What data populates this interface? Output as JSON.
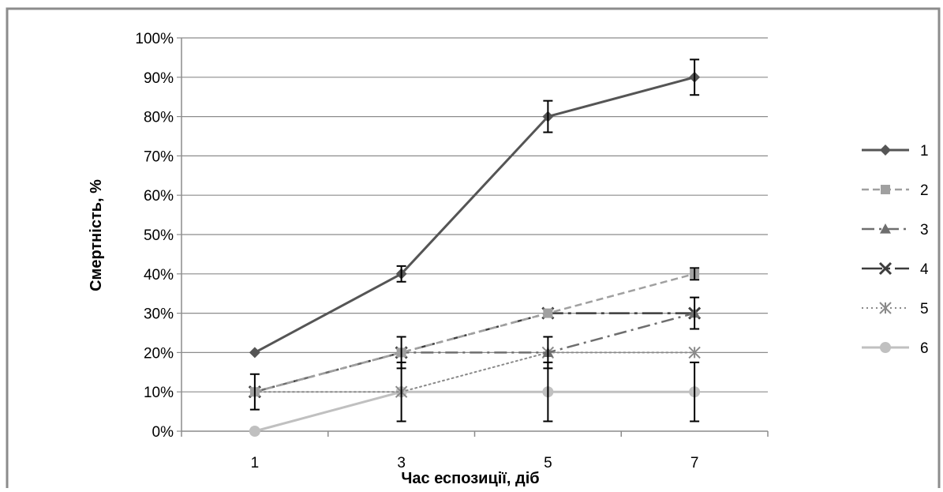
{
  "chart_data": {
    "type": "line",
    "title": "",
    "xlabel": "Час еспозиції, діб",
    "ylabel": "Смертність, %",
    "categories": [
      "1",
      "3",
      "5",
      "7"
    ],
    "ylim": [
      0,
      100
    ],
    "ytick_step": 10,
    "ytick_format": "percent",
    "grid": "horizontal",
    "legend_position": "right",
    "series": [
      {
        "name": "1",
        "values": [
          20,
          40,
          80,
          90
        ],
        "errors": [
          null,
          2,
          4,
          4.5
        ],
        "color": "#555555",
        "dash": "solid",
        "width": 3,
        "marker": "diamond"
      },
      {
        "name": "2",
        "values": [
          10,
          20,
          30,
          40
        ],
        "errors": [
          null,
          null,
          null,
          1.5
        ],
        "color": "#a0a0a0",
        "dash": "dash",
        "width": 2.5,
        "marker": "square"
      },
      {
        "name": "3",
        "values": [
          10,
          20,
          20,
          30
        ],
        "errors": [
          null,
          null,
          4,
          null
        ],
        "color": "#6e6e6e",
        "dash": "dashdot",
        "width": 2.5,
        "marker": "triangle"
      },
      {
        "name": "4",
        "values": [
          10,
          20,
          30,
          30
        ],
        "errors": [
          4.5,
          4,
          null,
          4
        ],
        "color": "#3c3c3c",
        "dash": "longdashdot",
        "width": 2.5,
        "marker": "x"
      },
      {
        "name": "5",
        "values": [
          10,
          10,
          20,
          20
        ],
        "errors": [
          null,
          null,
          null,
          null
        ],
        "color": "#8a8a8a",
        "dash": "dot",
        "width": 2,
        "marker": "star"
      },
      {
        "name": "6",
        "values": [
          0,
          10,
          10,
          10
        ],
        "errors": [
          null,
          7.5,
          7.5,
          7.5
        ],
        "color": "#c0c0c0",
        "dash": "solid",
        "width": 3,
        "marker": "circle"
      }
    ]
  }
}
